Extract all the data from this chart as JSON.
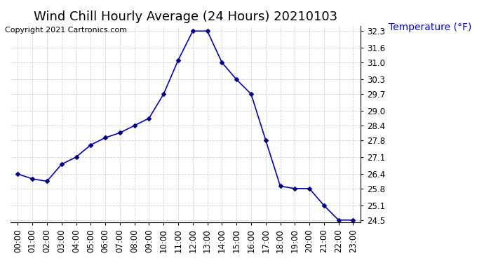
{
  "title": "Wind Chill Hourly Average (24 Hours) 20210103",
  "copyright_text": "Copyright 2021 Cartronics.com",
  "ylabel": "Temperature (°F)",
  "hours": [
    "00:00",
    "01:00",
    "02:00",
    "03:00",
    "04:00",
    "05:00",
    "06:00",
    "07:00",
    "08:00",
    "09:00",
    "10:00",
    "11:00",
    "12:00",
    "13:00",
    "14:00",
    "15:00",
    "16:00",
    "17:00",
    "18:00",
    "19:00",
    "20:00",
    "21:00",
    "22:00",
    "23:00"
  ],
  "values": [
    26.4,
    26.2,
    26.1,
    26.8,
    27.1,
    27.6,
    27.9,
    28.1,
    28.4,
    28.7,
    29.7,
    31.1,
    32.3,
    32.3,
    31.0,
    30.3,
    29.7,
    27.8,
    25.9,
    25.8,
    25.8,
    25.1,
    24.5,
    24.5
  ],
  "line_color": "#0000cc",
  "marker_color": "#000080",
  "background_color": "#ffffff",
  "grid_color": "#cccccc",
  "title_color": "#000000",
  "ylabel_color": "#0000ff",
  "copyright_color": "#000000",
  "ylim_min": 24.5,
  "ylim_max": 32.3,
  "yticks": [
    24.5,
    25.1,
    25.8,
    26.4,
    27.1,
    27.8,
    28.4,
    29.0,
    29.7,
    30.3,
    31.0,
    31.6,
    32.3
  ],
  "title_fontsize": 13,
  "ylabel_fontsize": 10,
  "tick_fontsize": 8.5,
  "copyright_fontsize": 8
}
